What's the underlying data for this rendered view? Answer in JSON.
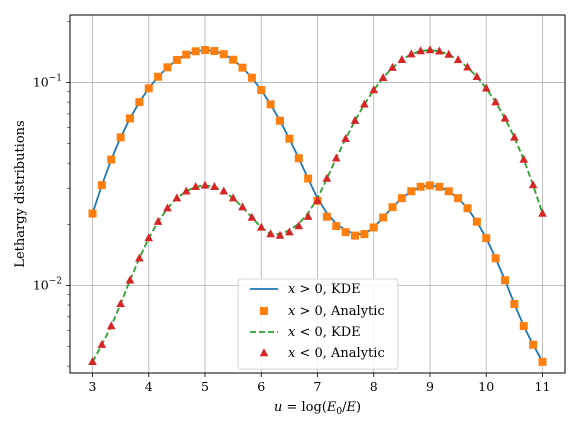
{
  "chart_data": {
    "type": "line",
    "title": "",
    "xlabel": "u = log(E₀/E)",
    "ylabel": "Lethargy distributions",
    "xlim": [
      2.6,
      11.4
    ],
    "ylim": [
      0.0037,
      0.215
    ],
    "yscale": "log",
    "grid": true,
    "legend_position": "bottom-center",
    "x_ticks": [
      3,
      4,
      5,
      6,
      7,
      8,
      9,
      10,
      11
    ],
    "x_tick_labels": [
      "3",
      "4",
      "5",
      "6",
      "7",
      "8",
      "9",
      "10",
      "11"
    ],
    "y_ticks": [
      0.01,
      0.1
    ],
    "y_tick_labels": [
      "10⁻²",
      "10⁻¹"
    ],
    "colors": {
      "pos_kde": "#1f77b4",
      "pos_analytic": "#ff7f0e",
      "neg_kde": "#2ca02c",
      "neg_analytic": "#d62728"
    },
    "x": [
      3.0,
      3.1667,
      3.3333,
      3.5,
      3.6667,
      3.8333,
      4.0,
      4.1667,
      4.3333,
      4.5,
      4.6667,
      4.8333,
      5.0,
      5.1667,
      5.3333,
      5.5,
      5.6667,
      5.8333,
      6.0,
      6.1667,
      6.3333,
      6.5,
      6.6667,
      6.8333,
      7.0,
      7.1667,
      7.3333,
      7.5,
      7.6667,
      7.8333,
      8.0,
      8.1667,
      8.3333,
      8.5,
      8.6667,
      8.8333,
      9.0,
      9.1667,
      9.3333,
      9.5,
      9.6667,
      9.8333,
      10.0,
      10.1667,
      10.3333,
      10.5,
      10.6667,
      10.8333,
      11.0
    ],
    "series": [
      {
        "name": "x > 0, KDE",
        "style": "solid-line",
        "values": [
          0.0226,
          0.0312,
          0.0417,
          0.0536,
          0.0665,
          0.08,
          0.0936,
          0.1067,
          0.1187,
          0.1291,
          0.1372,
          0.1425,
          0.1445,
          0.1429,
          0.1378,
          0.1294,
          0.1183,
          0.1055,
          0.0918,
          0.078,
          0.0648,
          0.0528,
          0.0423,
          0.0336,
          0.0268,
          0.0227,
          0.0201,
          0.0187,
          0.0179,
          0.0179,
          0.0193,
          0.0216,
          0.0243,
          0.0269,
          0.0291,
          0.0306,
          0.0311,
          0.0306,
          0.0291,
          0.0269,
          0.024,
          0.0206,
          0.0171,
          0.0136,
          0.0106,
          0.0081,
          0.0063,
          0.0051,
          0.0042
        ]
      },
      {
        "name": "x > 0, Analytic",
        "style": "square-markers",
        "values": [
          0.0226,
          0.0312,
          0.0417,
          0.0536,
          0.0665,
          0.08,
          0.0936,
          0.1067,
          0.1187,
          0.1291,
          0.1372,
          0.1425,
          0.1445,
          0.1429,
          0.1378,
          0.1294,
          0.1183,
          0.1055,
          0.0918,
          0.078,
          0.0648,
          0.0528,
          0.0423,
          0.0336,
          0.0261,
          0.0218,
          0.0196,
          0.0183,
          0.0176,
          0.0179,
          0.0193,
          0.0216,
          0.0243,
          0.0269,
          0.0291,
          0.0306,
          0.0311,
          0.0306,
          0.0291,
          0.0269,
          0.024,
          0.0206,
          0.0171,
          0.0136,
          0.0106,
          0.0081,
          0.0063,
          0.0051,
          0.0042
        ]
      },
      {
        "name": "x < 0, KDE",
        "style": "dashed-line",
        "values": [
          0.0042,
          0.0051,
          0.0063,
          0.0081,
          0.0106,
          0.0136,
          0.0171,
          0.0206,
          0.024,
          0.0269,
          0.0291,
          0.0306,
          0.0311,
          0.0306,
          0.0291,
          0.0269,
          0.0243,
          0.0216,
          0.0193,
          0.0179,
          0.0179,
          0.0187,
          0.0201,
          0.0227,
          0.0268,
          0.0336,
          0.0423,
          0.0528,
          0.0648,
          0.078,
          0.0918,
          0.1055,
          0.1183,
          0.1294,
          0.1378,
          0.1429,
          0.1445,
          0.1425,
          0.1372,
          0.1291,
          0.1187,
          0.1067,
          0.0936,
          0.08,
          0.0665,
          0.0536,
          0.0417,
          0.0312,
          0.0226
        ]
      },
      {
        "name": "x < 0, Analytic",
        "style": "triangle-markers",
        "values": [
          0.0042,
          0.0051,
          0.0063,
          0.0081,
          0.0106,
          0.0136,
          0.0171,
          0.0206,
          0.024,
          0.0269,
          0.0291,
          0.0306,
          0.0311,
          0.0306,
          0.0291,
          0.0269,
          0.0243,
          0.0216,
          0.0193,
          0.0179,
          0.0176,
          0.0183,
          0.0196,
          0.0218,
          0.0261,
          0.0336,
          0.0423,
          0.0528,
          0.0648,
          0.078,
          0.0918,
          0.1055,
          0.1183,
          0.1294,
          0.1378,
          0.1429,
          0.1445,
          0.1425,
          0.1372,
          0.1291,
          0.1187,
          0.1067,
          0.0936,
          0.08,
          0.0665,
          0.0536,
          0.0417,
          0.0312,
          0.0226
        ]
      }
    ],
    "legend": [
      {
        "label_x": "x",
        "label_rel": "> 0",
        "label_rest": ", KDE"
      },
      {
        "label_x": "x",
        "label_rel": "> 0",
        "label_rest": ", Analytic"
      },
      {
        "label_x": "x",
        "label_rel": "< 0",
        "label_rest": ", KDE"
      },
      {
        "label_x": "x",
        "label_rel": "< 0",
        "label_rest": ", Analytic"
      }
    ]
  }
}
